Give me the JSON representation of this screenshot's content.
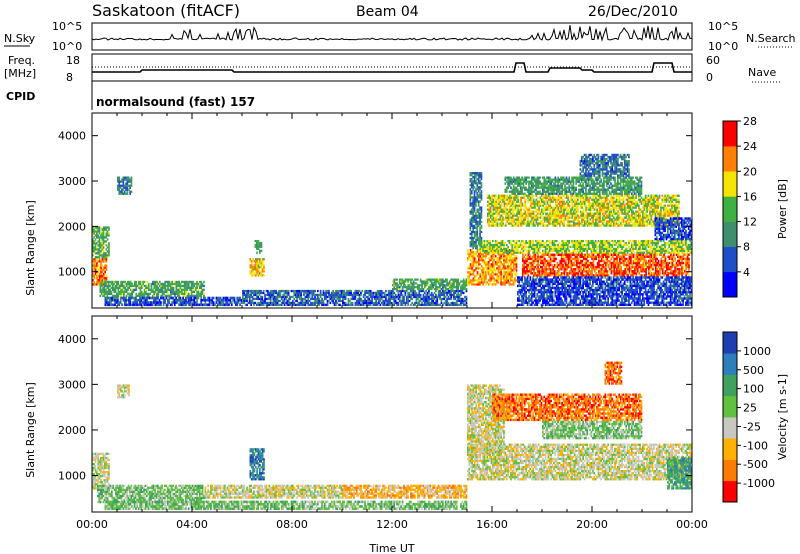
{
  "header": {
    "station": "Saskatoon (fitACF)",
    "beam": "Beam 04",
    "date": "26/Dec/2010"
  },
  "panels": {
    "nsky": {
      "left_label": "N.Sky",
      "ytick_top": "10^5",
      "ytick_bottom": "10^0",
      "right_tick_top": "10^5",
      "right_tick_bottom": "10^0",
      "right_label": "N.Search"
    },
    "freq": {
      "left_label_1": "Freq.",
      "left_label_2": "[MHz]",
      "ytick_top": "18",
      "ytick_bottom": "8",
      "right_tick_top": "60",
      "right_tick_bottom": "0",
      "right_label": "Nave"
    },
    "cpid": {
      "left_label": "CPID",
      "mode": "normalsound (fast) 157"
    }
  },
  "chart_data": [
    {
      "type": "heatmap",
      "name": "power",
      "ylabel": "Slant Range [km]",
      "xlabel": "",
      "xlim": [
        0,
        24
      ],
      "ylim": [
        200,
        4500
      ],
      "yticks": [
        1000,
        2000,
        3000,
        4000
      ],
      "colorbar": {
        "label": "Power [dB]",
        "ticks": [
          4,
          8,
          12,
          16,
          20,
          24,
          28
        ],
        "range": [
          0,
          32
        ],
        "colors": [
          "#0000ff",
          "#1f4fc8",
          "#3f8f6f",
          "#40b040",
          "#f5e400",
          "#ff8000",
          "#ff0000"
        ]
      },
      "regions": [
        {
          "t0": 0.0,
          "t1": 0.6,
          "r0": 700,
          "r1": 1300,
          "level": 26
        },
        {
          "t0": 0.0,
          "t1": 0.7,
          "r0": 1300,
          "r1": 2000,
          "level": 15
        },
        {
          "t0": 0.3,
          "t1": 4.5,
          "r0": 450,
          "r1": 800,
          "level": 14
        },
        {
          "t0": 1.0,
          "t1": 1.6,
          "r0": 2700,
          "r1": 3100,
          "level": 10
        },
        {
          "t0": 0.5,
          "t1": 6.0,
          "r0": 250,
          "r1": 450,
          "level": 7
        },
        {
          "t0": 6.3,
          "t1": 6.9,
          "r0": 900,
          "r1": 1300,
          "level": 22
        },
        {
          "t0": 6.5,
          "t1": 6.8,
          "r0": 1400,
          "r1": 1700,
          "level": 14
        },
        {
          "t0": 6.0,
          "t1": 15.0,
          "r0": 250,
          "r1": 600,
          "level": 8
        },
        {
          "t0": 12.0,
          "t1": 15.0,
          "r0": 600,
          "r1": 850,
          "level": 14
        },
        {
          "t0": 15.0,
          "t1": 17.0,
          "r0": 700,
          "r1": 1500,
          "level": 24
        },
        {
          "t0": 15.1,
          "t1": 15.6,
          "r0": 1500,
          "r1": 3200,
          "level": 10
        },
        {
          "t0": 15.5,
          "t1": 24.0,
          "r0": 1400,
          "r1": 1700,
          "level": 18
        },
        {
          "t0": 17.2,
          "t1": 23.9,
          "r0": 900,
          "r1": 1400,
          "level": 27
        },
        {
          "t0": 15.8,
          "t1": 23.5,
          "r0": 2000,
          "r1": 2700,
          "level": 20
        },
        {
          "t0": 16.5,
          "t1": 22.0,
          "r0": 2700,
          "r1": 3100,
          "level": 13
        },
        {
          "t0": 19.5,
          "t1": 21.5,
          "r0": 3100,
          "r1": 3600,
          "level": 9
        },
        {
          "t0": 22.5,
          "t1": 24.0,
          "r0": 1700,
          "r1": 2200,
          "level": 6
        },
        {
          "t0": 17.0,
          "t1": 24.0,
          "r0": 250,
          "r1": 900,
          "level": 6
        }
      ]
    },
    {
      "type": "heatmap",
      "name": "velocity",
      "ylabel": "Slant Range [km]",
      "xlabel": "Time UT",
      "xlim": [
        0,
        24
      ],
      "ylim": [
        200,
        4500
      ],
      "yticks": [
        1000,
        2000,
        3000,
        4000
      ],
      "xticks": [
        "00:00",
        "04:00",
        "08:00",
        "12:00",
        "16:00",
        "20:00",
        "00:00"
      ],
      "colorbar": {
        "label": "Velocity [m s-1]",
        "ticks": [
          "1000",
          "500",
          "100",
          "25",
          "-25",
          "-100",
          "-500",
          "-1000"
        ],
        "colors": [
          "#1f3fb0",
          "#2c7fb8",
          "#3fa060",
          "#60c040",
          "#c8c8c0",
          "#ffb000",
          "#ff7a00",
          "#ff0000"
        ]
      },
      "regions": [
        {
          "t0": 0.0,
          "t1": 0.7,
          "r0": 700,
          "r1": 1500,
          "level": 4
        },
        {
          "t0": 0.2,
          "t1": 4.5,
          "r0": 400,
          "r1": 800,
          "level": 3
        },
        {
          "t0": 1.0,
          "t1": 1.5,
          "r0": 2700,
          "r1": 3000,
          "level": 4
        },
        {
          "t0": 4.5,
          "t1": 10.0,
          "r0": 500,
          "r1": 800,
          "level": 4
        },
        {
          "t0": 6.3,
          "t1": 6.9,
          "r0": 900,
          "r1": 1600,
          "level": 1
        },
        {
          "t0": 10.0,
          "t1": 15.0,
          "r0": 500,
          "r1": 800,
          "level": 5
        },
        {
          "t0": 15.0,
          "t1": 24.0,
          "r0": 900,
          "r1": 1700,
          "level": 4
        },
        {
          "t0": 15.0,
          "t1": 16.5,
          "r0": 1500,
          "r1": 3000,
          "level": 4
        },
        {
          "t0": 16.0,
          "t1": 22.0,
          "r0": 2200,
          "r1": 2800,
          "level": 6
        },
        {
          "t0": 18.0,
          "t1": 22.0,
          "r0": 1800,
          "r1": 2200,
          "level": 3
        },
        {
          "t0": 20.5,
          "t1": 21.2,
          "r0": 3000,
          "r1": 3500,
          "level": 6
        },
        {
          "t0": 23.0,
          "t1": 24.0,
          "r0": 700,
          "r1": 1400,
          "level": 2
        },
        {
          "t0": 0.5,
          "t1": 15.0,
          "r0": 250,
          "r1": 450,
          "level": 3
        }
      ]
    }
  ]
}
